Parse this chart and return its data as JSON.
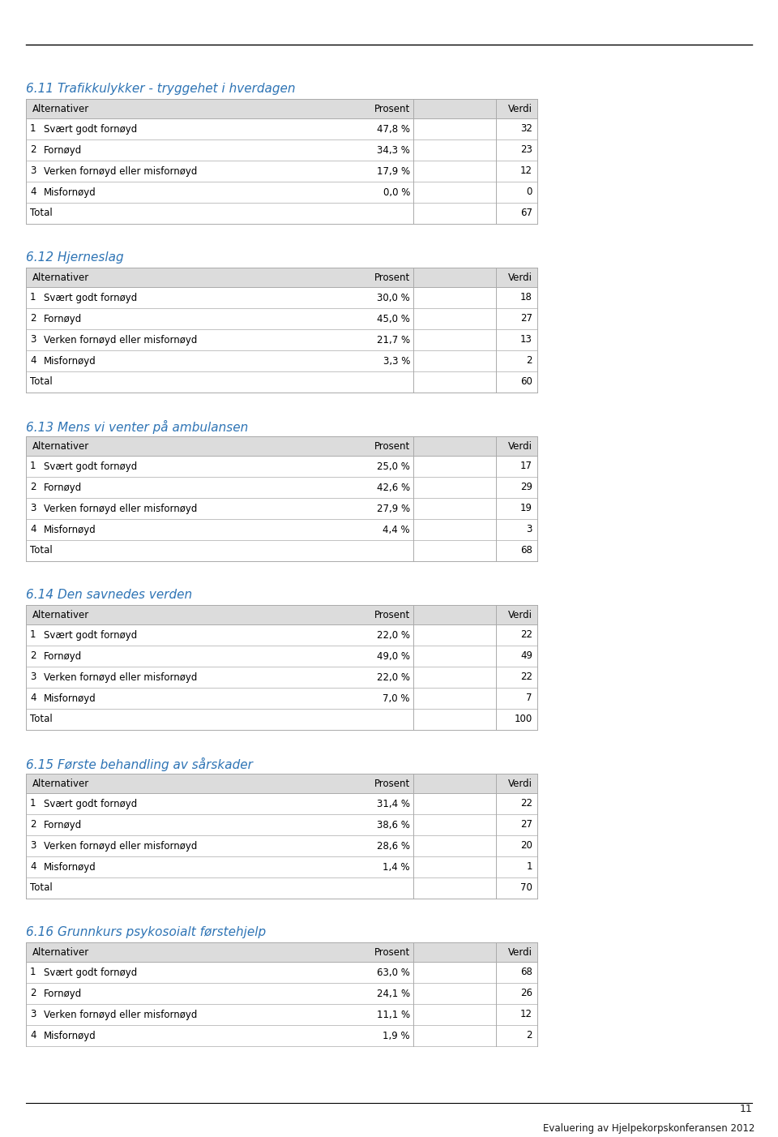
{
  "header_text": "Evaluering av Hjelpekorpskonferansen 2012",
  "footer_page": "11",
  "title_color": "#2E74B5",
  "table_header_bg": "#DCDCDC",
  "table_bg": "#FFFFFF",
  "border_color": "#AAAAAA",
  "text_color": "#1A1A1A",
  "sections": [
    {
      "title": "6.11 Trafikkulykker - tryggehet i hverdagen",
      "rows": [
        {
          "num": "1",
          "alt": "Svært godt fornøyd",
          "prosent": "47,8 %",
          "verdi": "32"
        },
        {
          "num": "2",
          "alt": "Fornøyd",
          "prosent": "34,3 %",
          "verdi": "23"
        },
        {
          "num": "3",
          "alt": "Verken fornøyd eller misfornøyd",
          "prosent": "17,9 %",
          "verdi": "12"
        },
        {
          "num": "4",
          "alt": "Misfornøyd",
          "prosent": "0,0 %",
          "verdi": "0"
        }
      ],
      "total": "67",
      "show_total": true
    },
    {
      "title": "6.12 Hjerneslag",
      "rows": [
        {
          "num": "1",
          "alt": "Svært godt fornøyd",
          "prosent": "30,0 %",
          "verdi": "18"
        },
        {
          "num": "2",
          "alt": "Fornøyd",
          "prosent": "45,0 %",
          "verdi": "27"
        },
        {
          "num": "3",
          "alt": "Verken fornøyd eller misfornøyd",
          "prosent": "21,7 %",
          "verdi": "13"
        },
        {
          "num": "4",
          "alt": "Misfornøyd",
          "prosent": "3,3 %",
          "verdi": "2"
        }
      ],
      "total": "60",
      "show_total": true
    },
    {
      "title": "6.13 Mens vi venter på ambulansen",
      "rows": [
        {
          "num": "1",
          "alt": "Svært godt fornøyd",
          "prosent": "25,0 %",
          "verdi": "17"
        },
        {
          "num": "2",
          "alt": "Fornøyd",
          "prosent": "42,6 %",
          "verdi": "29"
        },
        {
          "num": "3",
          "alt": "Verken fornøyd eller misfornøyd",
          "prosent": "27,9 %",
          "verdi": "19"
        },
        {
          "num": "4",
          "alt": "Misfornøyd",
          "prosent": "4,4 %",
          "verdi": "3"
        }
      ],
      "total": "68",
      "show_total": true
    },
    {
      "title": "6.14 Den savnedes verden",
      "rows": [
        {
          "num": "1",
          "alt": "Svært godt fornøyd",
          "prosent": "22,0 %",
          "verdi": "22"
        },
        {
          "num": "2",
          "alt": "Fornøyd",
          "prosent": "49,0 %",
          "verdi": "49"
        },
        {
          "num": "3",
          "alt": "Verken fornøyd eller misfornøyd",
          "prosent": "22,0 %",
          "verdi": "22"
        },
        {
          "num": "4",
          "alt": "Misfornøyd",
          "prosent": "7,0 %",
          "verdi": "7"
        }
      ],
      "total": "100",
      "show_total": true
    },
    {
      "title": "6.15 Første behandling av sårskader",
      "rows": [
        {
          "num": "1",
          "alt": "Svært godt fornøyd",
          "prosent": "31,4 %",
          "verdi": "22"
        },
        {
          "num": "2",
          "alt": "Fornøyd",
          "prosent": "38,6 %",
          "verdi": "27"
        },
        {
          "num": "3",
          "alt": "Verken fornøyd eller misfornøyd",
          "prosent": "28,6 %",
          "verdi": "20"
        },
        {
          "num": "4",
          "alt": "Misfornøyd",
          "prosent": "1,4 %",
          "verdi": "1"
        }
      ],
      "total": "70",
      "show_total": true
    },
    {
      "title": "6.16 Grunnkurs psykosoialt førstehjelp",
      "rows": [
        {
          "num": "1",
          "alt": "Svært godt fornøyd",
          "prosent": "63,0 %",
          "verdi": "68"
        },
        {
          "num": "2",
          "alt": "Fornøyd",
          "prosent": "24,1 %",
          "verdi": "26"
        },
        {
          "num": "3",
          "alt": "Verken fornøyd eller misfornøyd",
          "prosent": "11,1 %",
          "verdi": "12"
        },
        {
          "num": "4",
          "alt": "Misfornøyd",
          "prosent": "1,9 %",
          "verdi": "2"
        }
      ],
      "total": null,
      "show_total": false
    }
  ]
}
